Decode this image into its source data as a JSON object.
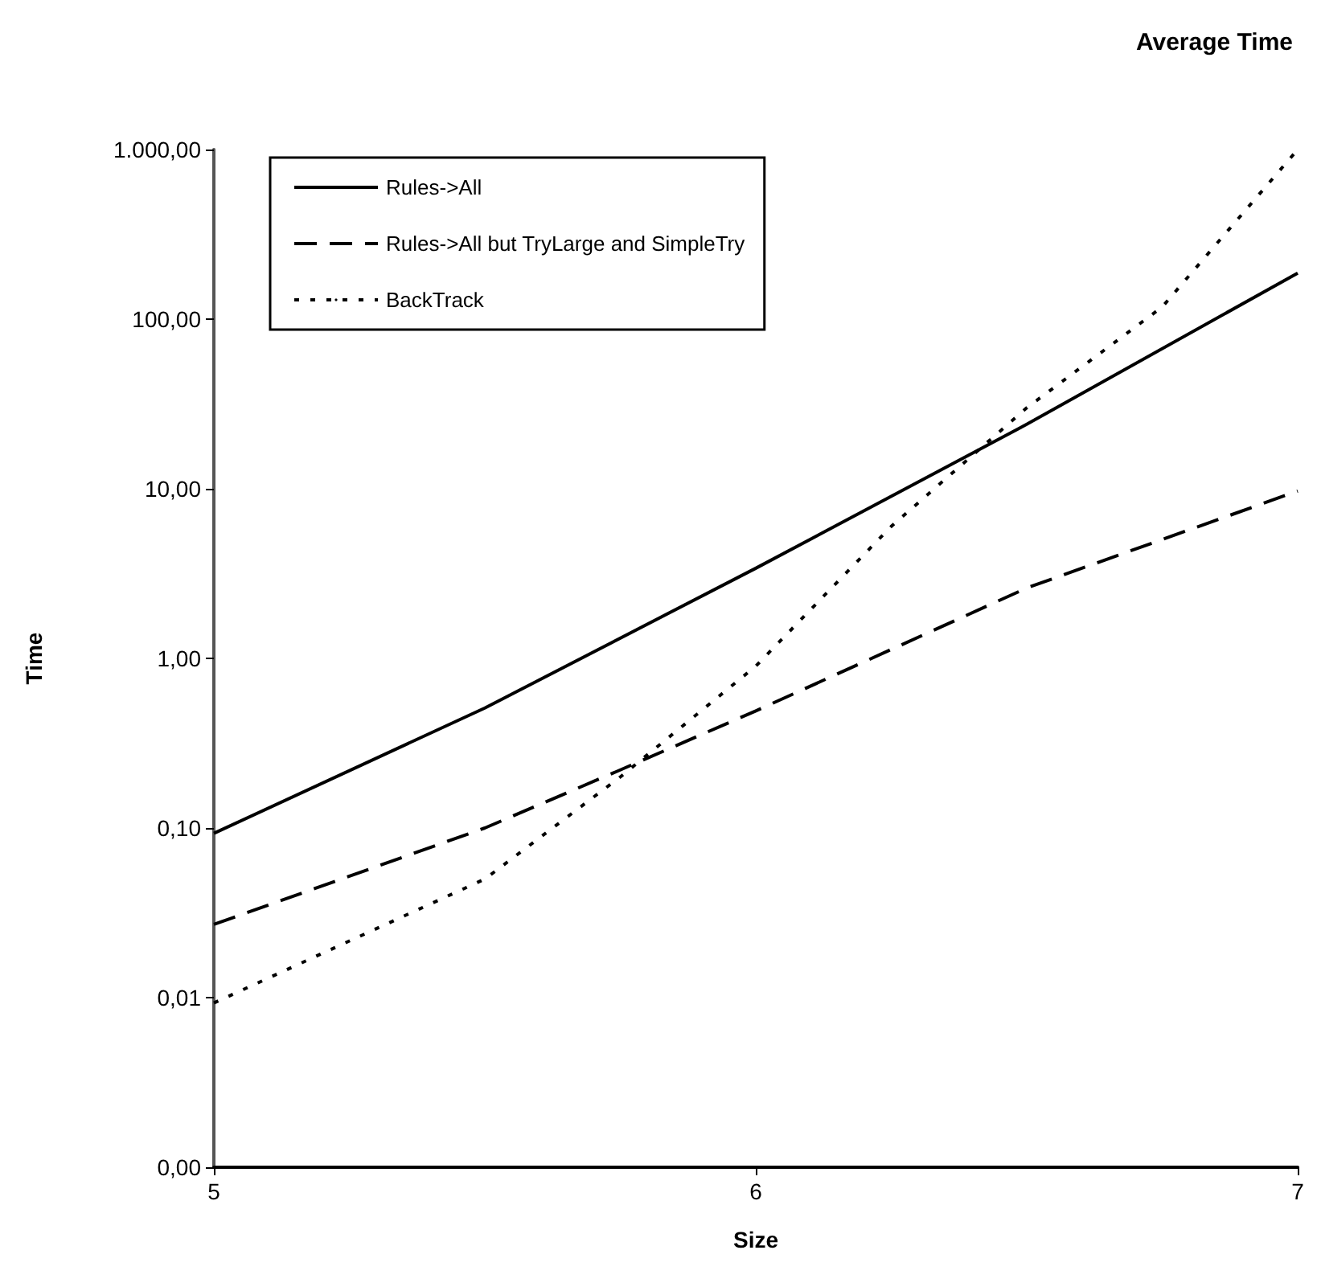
{
  "chart_data": {
    "type": "line",
    "title": "Average Time",
    "xlabel": "Size",
    "ylabel": "Time",
    "series": [
      {
        "name": "Rules->All",
        "color": "#000000",
        "line_style": "solid",
        "x": [
          5,
          5.5,
          6,
          6.5,
          7
        ],
        "values": [
          0.093,
          0.51,
          3.4,
          24,
          187
        ]
      },
      {
        "name": "Rules->All but TryLarge and SimpleTry",
        "color": "#000000",
        "line_style": "dashed",
        "x": [
          5,
          5.5,
          5.75,
          6,
          6.5,
          7
        ],
        "values": [
          0.027,
          0.1,
          0.22,
          0.49,
          2.6,
          9.7
        ]
      },
      {
        "name": "BackTrack",
        "color": "#000000",
        "line_style": "dotted",
        "x": [
          5,
          5.5,
          5.75,
          6,
          6.25,
          6.5,
          6.75,
          7
        ],
        "values": [
          0.0093,
          0.05,
          0.2,
          0.9,
          6,
          30,
          118,
          1000
        ]
      }
    ],
    "xlim": [
      5,
      7
    ],
    "xticks": [
      5,
      6,
      7
    ],
    "ylim": [
      0.001,
      1000
    ],
    "yticks": [
      {
        "value": 0.001,
        "label": "0,00"
      },
      {
        "value": 0.01,
        "label": "0,01"
      },
      {
        "value": 0.1,
        "label": "0,10"
      },
      {
        "value": 1,
        "label": "1,00"
      },
      {
        "value": 10,
        "label": "10,00"
      },
      {
        "value": 100,
        "label": "100,00"
      },
      {
        "value": 1000,
        "label": "1.000,00"
      }
    ],
    "log": "y",
    "grid": false,
    "legend": "top left",
    "marker": "none"
  }
}
